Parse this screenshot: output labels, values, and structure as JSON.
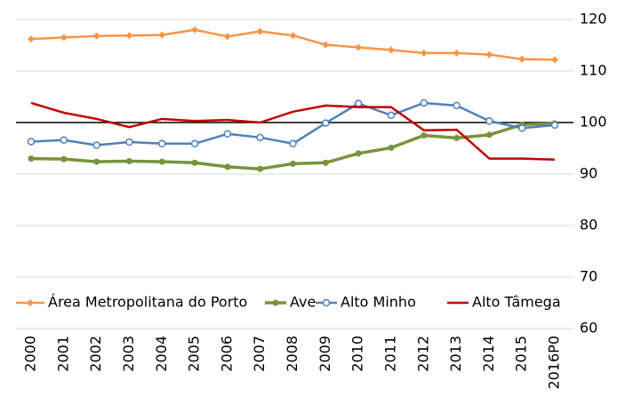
{
  "chart_data": {
    "type": "line",
    "categories": [
      "2000",
      "2001",
      "2002",
      "2003",
      "2004",
      "2005",
      "2006",
      "2007",
      "2008",
      "2009",
      "2010",
      "2011",
      "2012",
      "2013",
      "2014",
      "2015",
      "2016P0"
    ],
    "series": [
      {
        "name": "Área Metropolitana do Porto",
        "color": "#f79646",
        "marker": "diamond",
        "values": [
          116.2,
          116.5,
          116.8,
          116.9,
          117.0,
          118.0,
          116.7,
          117.7,
          116.9,
          115.1,
          114.6,
          114.1,
          113.5,
          113.5,
          113.2,
          112.3,
          112.2
        ]
      },
      {
        "name": "Ave",
        "color": "#77933c",
        "marker": "circle",
        "values": [
          93.0,
          92.9,
          92.4,
          92.5,
          92.4,
          92.2,
          91.4,
          91.0,
          92.0,
          92.2,
          94.0,
          95.1,
          97.5,
          97.0,
          97.6,
          99.6,
          99.8
        ]
      },
      {
        "name": "Alto Minho",
        "color": "#4f81bd",
        "marker": "hollow-circle",
        "values": [
          96.3,
          96.6,
          95.6,
          96.2,
          95.9,
          95.9,
          97.8,
          97.1,
          95.9,
          99.9,
          103.7,
          101.4,
          103.8,
          103.3,
          100.3,
          98.9,
          99.5
        ]
      },
      {
        "name": "Alto Tâmega",
        "color": "#c00000",
        "marker": "none",
        "values": [
          103.8,
          101.9,
          100.7,
          99.1,
          100.7,
          100.3,
          100.5,
          100.0,
          102.1,
          103.3,
          103.0,
          103.0,
          98.5,
          98.6,
          93.0,
          93.0,
          92.8
        ]
      }
    ],
    "ylim": [
      60,
      120
    ],
    "yticks": [
      60,
      70,
      80,
      90,
      100,
      110,
      120
    ],
    "reference_line": 100,
    "grid": true,
    "legend": "bottom"
  }
}
